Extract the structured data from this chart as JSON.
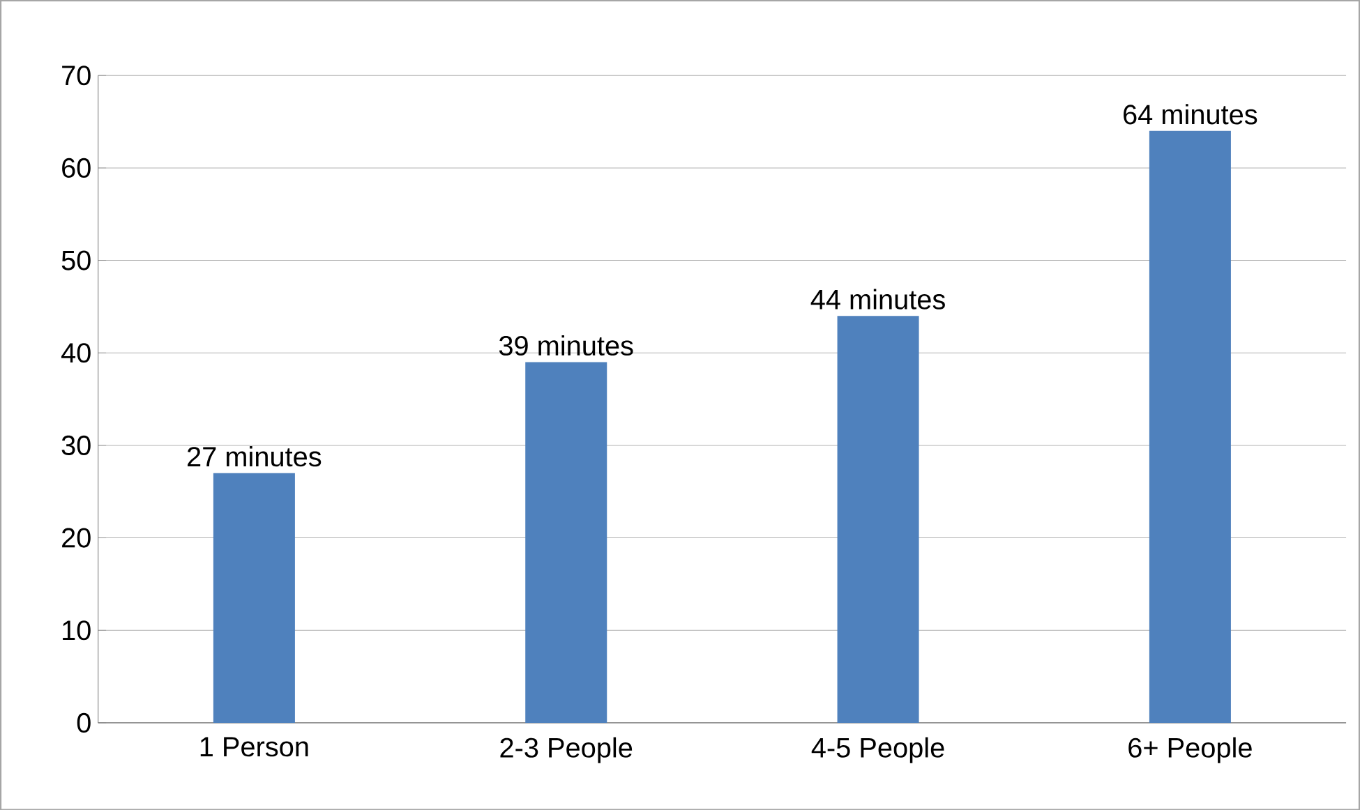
{
  "chart_data": {
    "type": "bar",
    "categories": [
      "1 Person",
      "2-3 People",
      "4-5 People",
      "6+ People"
    ],
    "values": [
      27,
      39,
      44,
      64
    ],
    "value_labels": [
      "27 minutes",
      "39 minutes",
      "44 minutes",
      "64 minutes"
    ],
    "color": "#4f81bd",
    "ylim": [
      0,
      70
    ],
    "yticks": [
      0,
      10,
      20,
      30,
      40,
      50,
      60,
      70
    ],
    "grid": "y"
  }
}
